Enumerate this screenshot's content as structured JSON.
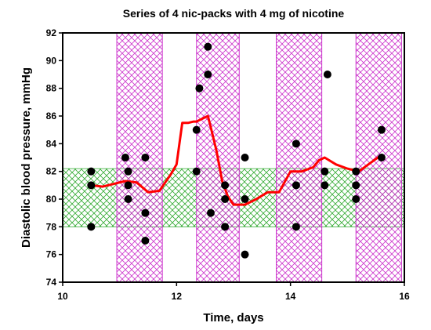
{
  "chart_data": {
    "type": "scatter",
    "title": "Series of 4 nic-packs with 4 mg of nicotine",
    "xlabel": "Time, days",
    "ylabel": "Diastolic blood pressure, mmHg",
    "xlim": [
      10,
      16
    ],
    "ylim": [
      74,
      92
    ],
    "x_ticks": [
      10,
      12,
      14,
      16
    ],
    "y_ticks": [
      74,
      76,
      78,
      80,
      82,
      84,
      86,
      88,
      90,
      92
    ],
    "grid": false,
    "legend": "none",
    "nic_pack_periods": [
      [
        10.95,
        11.75
      ],
      [
        12.35,
        13.1
      ],
      [
        13.75,
        14.55
      ],
      [
        15.15,
        15.95
      ]
    ],
    "reference_band": [
      78,
      82.2
    ],
    "colors": {
      "points": "#000000",
      "trend_line": "#ff0000",
      "nic_pack_hatch": "#cc33cc",
      "reference_hatch": "#33aa33"
    },
    "series": [
      {
        "type": "scatter",
        "x": [
          10.5,
          10.5,
          10.5,
          11.1,
          11.15,
          11.15,
          11.15,
          11.45,
          11.45,
          11.45,
          12.35,
          12.35,
          12.4,
          12.55,
          12.55,
          12.6,
          12.85,
          12.85,
          12.85,
          13.2,
          13.2,
          13.2,
          14.1,
          14.1,
          14.1,
          14.6,
          14.6,
          14.65,
          15.15,
          15.15,
          15.15,
          15.6,
          15.6
        ],
        "y": [
          82,
          81,
          78,
          83,
          82,
          81,
          80,
          83,
          79,
          77,
          85,
          82,
          88,
          91,
          89,
          79,
          81,
          80,
          78,
          83,
          80,
          76,
          84,
          81,
          78,
          82,
          81,
          89,
          82,
          81,
          80,
          85,
          83
        ]
      },
      {
        "type": "line",
        "x": [
          10.5,
          10.7,
          10.9,
          11.1,
          11.3,
          11.5,
          11.7,
          11.9,
          12.0,
          12.1,
          12.2,
          12.3,
          12.35,
          12.45,
          12.55,
          12.6,
          12.7,
          12.8,
          12.9,
          13.0,
          13.2,
          13.4,
          13.6,
          13.8,
          14.0,
          14.2,
          14.4,
          14.5,
          14.6,
          14.8,
          15.0,
          15.2,
          15.4,
          15.6
        ],
        "y": [
          81.0,
          80.9,
          81.1,
          81.3,
          81.2,
          80.5,
          80.6,
          81.8,
          82.5,
          85.5,
          85.5,
          85.6,
          85.6,
          85.8,
          86.0,
          85.2,
          83.5,
          81.3,
          80.2,
          79.6,
          79.6,
          80.0,
          80.5,
          80.5,
          82.0,
          82.0,
          82.3,
          82.8,
          83.0,
          82.5,
          82.2,
          82.0,
          82.6,
          83.2
        ]
      }
    ]
  }
}
